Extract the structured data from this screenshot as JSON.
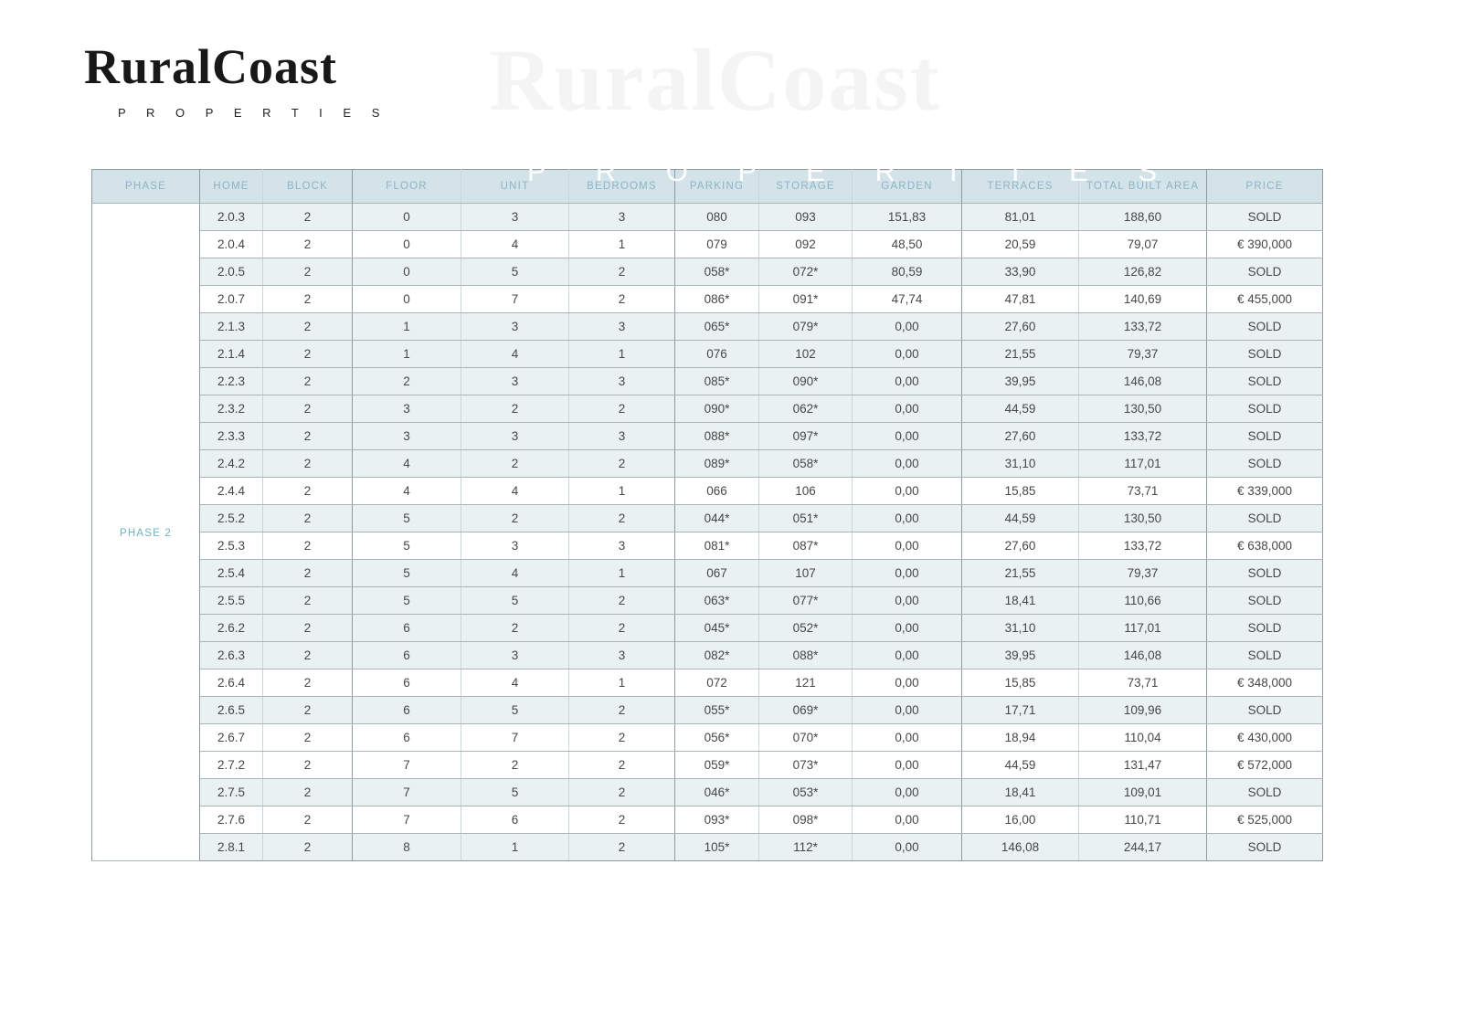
{
  "logo": {
    "brand": "RuralCoast",
    "tagline": "P R O P E R T I E S"
  },
  "watermark": {
    "brand": "RuralCoast",
    "tagline": "P R O P E R T I E S"
  },
  "colors": {
    "header_bg": "#d3e3e9",
    "header_text": "#8cb4c5",
    "row_sold_bg": "#e9f1f1",
    "row_available_bg": "#ffffff",
    "phase_text": "#74b0c2",
    "cell_text": "#474747",
    "border_dark": "#8d9a9e",
    "border_mid": "#a8b4b6",
    "border_light": "#c9d5d7"
  },
  "table": {
    "phase_label": "PHASE 2",
    "columns": [
      "PHASE",
      "HOME",
      "BLOCK",
      "FLOOR",
      "UNIT",
      "BEDROOMS",
      "PARKING",
      "STORAGE",
      "GARDEN",
      "TERRACES",
      "TOTAL BUILT AREA",
      "PRICE"
    ],
    "rows": [
      {
        "home": "2.0.3",
        "block": "2",
        "floor": "0",
        "unit": "3",
        "bedrooms": "3",
        "parking": "080",
        "storage": "093",
        "garden": "151,83",
        "terraces": "81,01",
        "total_built_area": "188,60",
        "price": "SOLD",
        "sold": true
      },
      {
        "home": "2.0.4",
        "block": "2",
        "floor": "0",
        "unit": "4",
        "bedrooms": "1",
        "parking": "079",
        "storage": "092",
        "garden": "48,50",
        "terraces": "20,59",
        "total_built_area": "79,07",
        "price": "€ 390,000",
        "sold": false
      },
      {
        "home": "2.0.5",
        "block": "2",
        "floor": "0",
        "unit": "5",
        "bedrooms": "2",
        "parking": "058*",
        "storage": "072*",
        "garden": "80,59",
        "terraces": "33,90",
        "total_built_area": "126,82",
        "price": "SOLD",
        "sold": true
      },
      {
        "home": "2.0.7",
        "block": "2",
        "floor": "0",
        "unit": "7",
        "bedrooms": "2",
        "parking": "086*",
        "storage": "091*",
        "garden": "47,74",
        "terraces": "47,81",
        "total_built_area": "140,69",
        "price": "€ 455,000",
        "sold": false
      },
      {
        "home": "2.1.3",
        "block": "2",
        "floor": "1",
        "unit": "3",
        "bedrooms": "3",
        "parking": "065*",
        "storage": "079*",
        "garden": "0,00",
        "terraces": "27,60",
        "total_built_area": "133,72",
        "price": "SOLD",
        "sold": true
      },
      {
        "home": "2.1.4",
        "block": "2",
        "floor": "1",
        "unit": "4",
        "bedrooms": "1",
        "parking": "076",
        "storage": "102",
        "garden": "0,00",
        "terraces": "21,55",
        "total_built_area": "79,37",
        "price": "SOLD",
        "sold": true
      },
      {
        "home": "2.2.3",
        "block": "2",
        "floor": "2",
        "unit": "3",
        "bedrooms": "3",
        "parking": "085*",
        "storage": "090*",
        "garden": "0,00",
        "terraces": "39,95",
        "total_built_area": "146,08",
        "price": "SOLD",
        "sold": true
      },
      {
        "home": "2.3.2",
        "block": "2",
        "floor": "3",
        "unit": "2",
        "bedrooms": "2",
        "parking": "090*",
        "storage": "062*",
        "garden": "0,00",
        "terraces": "44,59",
        "total_built_area": "130,50",
        "price": "SOLD",
        "sold": true
      },
      {
        "home": "2.3.3",
        "block": "2",
        "floor": "3",
        "unit": "3",
        "bedrooms": "3",
        "parking": "088*",
        "storage": "097*",
        "garden": "0,00",
        "terraces": "27,60",
        "total_built_area": "133,72",
        "price": "SOLD",
        "sold": true
      },
      {
        "home": "2.4.2",
        "block": "2",
        "floor": "4",
        "unit": "2",
        "bedrooms": "2",
        "parking": "089*",
        "storage": "058*",
        "garden": "0,00",
        "terraces": "31,10",
        "total_built_area": "117,01",
        "price": "SOLD",
        "sold": true
      },
      {
        "home": "2.4.4",
        "block": "2",
        "floor": "4",
        "unit": "4",
        "bedrooms": "1",
        "parking": "066",
        "storage": "106",
        "garden": "0,00",
        "terraces": "15,85",
        "total_built_area": "73,71",
        "price": "€ 339,000",
        "sold": false
      },
      {
        "home": "2.5.2",
        "block": "2",
        "floor": "5",
        "unit": "2",
        "bedrooms": "2",
        "parking": "044*",
        "storage": "051*",
        "garden": "0,00",
        "terraces": "44,59",
        "total_built_area": "130,50",
        "price": "SOLD",
        "sold": true
      },
      {
        "home": "2.5.3",
        "block": "2",
        "floor": "5",
        "unit": "3",
        "bedrooms": "3",
        "parking": "081*",
        "storage": "087*",
        "garden": "0,00",
        "terraces": "27,60",
        "total_built_area": "133,72",
        "price": "€ 638,000",
        "sold": false
      },
      {
        "home": "2.5.4",
        "block": "2",
        "floor": "5",
        "unit": "4",
        "bedrooms": "1",
        "parking": "067",
        "storage": "107",
        "garden": "0,00",
        "terraces": "21,55",
        "total_built_area": "79,37",
        "price": "SOLD",
        "sold": true
      },
      {
        "home": "2.5.5",
        "block": "2",
        "floor": "5",
        "unit": "5",
        "bedrooms": "2",
        "parking": "063*",
        "storage": "077*",
        "garden": "0,00",
        "terraces": "18,41",
        "total_built_area": "110,66",
        "price": "SOLD",
        "sold": true
      },
      {
        "home": "2.6.2",
        "block": "2",
        "floor": "6",
        "unit": "2",
        "bedrooms": "2",
        "parking": "045*",
        "storage": "052*",
        "garden": "0,00",
        "terraces": "31,10",
        "total_built_area": "117,01",
        "price": "SOLD",
        "sold": true
      },
      {
        "home": "2.6.3",
        "block": "2",
        "floor": "6",
        "unit": "3",
        "bedrooms": "3",
        "parking": "082*",
        "storage": "088*",
        "garden": "0,00",
        "terraces": "39,95",
        "total_built_area": "146,08",
        "price": "SOLD",
        "sold": true
      },
      {
        "home": "2.6.4",
        "block": "2",
        "floor": "6",
        "unit": "4",
        "bedrooms": "1",
        "parking": "072",
        "storage": "121",
        "garden": "0,00",
        "terraces": "15,85",
        "total_built_area": "73,71",
        "price": "€ 348,000",
        "sold": false
      },
      {
        "home": "2.6.5",
        "block": "2",
        "floor": "6",
        "unit": "5",
        "bedrooms": "2",
        "parking": "055*",
        "storage": "069*",
        "garden": "0,00",
        "terraces": "17,71",
        "total_built_area": "109,96",
        "price": "SOLD",
        "sold": true
      },
      {
        "home": "2.6.7",
        "block": "2",
        "floor": "6",
        "unit": "7",
        "bedrooms": "2",
        "parking": "056*",
        "storage": "070*",
        "garden": "0,00",
        "terraces": "18,94",
        "total_built_area": "110,04",
        "price": "€ 430,000",
        "sold": false
      },
      {
        "home": "2.7.2",
        "block": "2",
        "floor": "7",
        "unit": "2",
        "bedrooms": "2",
        "parking": "059*",
        "storage": "073*",
        "garden": "0,00",
        "terraces": "44,59",
        "total_built_area": "131,47",
        "price": "€ 572,000",
        "sold": false
      },
      {
        "home": "2.7.5",
        "block": "2",
        "floor": "7",
        "unit": "5",
        "bedrooms": "2",
        "parking": "046*",
        "storage": "053*",
        "garden": "0,00",
        "terraces": "18,41",
        "total_built_area": "109,01",
        "price": "SOLD",
        "sold": true
      },
      {
        "home": "2.7.6",
        "block": "2",
        "floor": "7",
        "unit": "6",
        "bedrooms": "2",
        "parking": "093*",
        "storage": "098*",
        "garden": "0,00",
        "terraces": "16,00",
        "total_built_area": "110,71",
        "price": "€ 525,000",
        "sold": false
      },
      {
        "home": "2.8.1",
        "block": "2",
        "floor": "8",
        "unit": "1",
        "bedrooms": "2",
        "parking": "105*",
        "storage": "112*",
        "garden": "0,00",
        "terraces": "146,08",
        "total_built_area": "244,17",
        "price": "SOLD",
        "sold": true
      }
    ]
  }
}
